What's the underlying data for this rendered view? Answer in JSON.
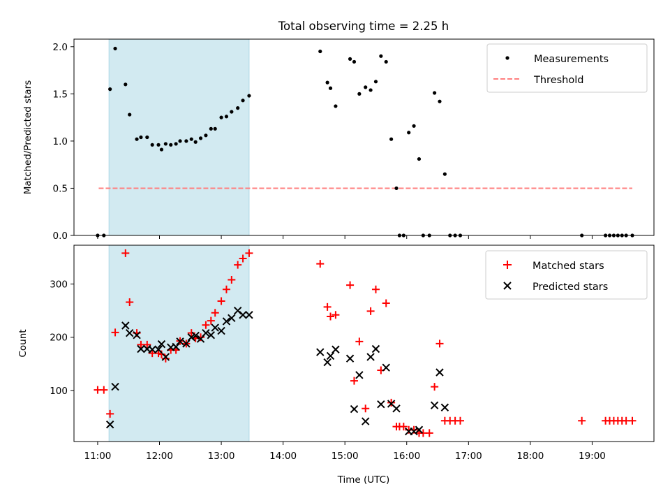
{
  "figure_title": "Total observing time = 2.25 h",
  "colors": {
    "shade": "#add8e6",
    "measurement": "#000000",
    "threshold": "#ff7f7f",
    "matched": "#ff0000",
    "predicted": "#000000"
  },
  "chart_data": [
    {
      "type": "scatter",
      "title": "Total observing time = 2.25 h",
      "xlabel": "",
      "ylabel": "Matched/Predicted stars",
      "xlim": [
        "10:37",
        "20:00"
      ],
      "ylim": [
        0,
        2.08
      ],
      "yticks": [
        "0.0",
        "0.5",
        "1.0",
        "1.5",
        "2.0"
      ],
      "grid": false,
      "legend_position": "upper right",
      "shaded_interval": [
        "11:11",
        "13:27"
      ],
      "threshold": {
        "name": "Threshold",
        "y": 0.5,
        "x_range": [
          "11:01",
          "19:39"
        ],
        "style": "dashed"
      },
      "series": [
        {
          "name": "Measurements",
          "points": [
            [
              "11:00",
              0.0
            ],
            [
              "11:06",
              0.0
            ],
            [
              "11:12",
              1.55
            ],
            [
              "11:17",
              1.98
            ],
            [
              "11:27",
              1.6
            ],
            [
              "11:31",
              1.28
            ],
            [
              "11:38",
              1.02
            ],
            [
              "11:42",
              1.04
            ],
            [
              "11:48",
              1.04
            ],
            [
              "11:53",
              0.96
            ],
            [
              "11:59",
              0.96
            ],
            [
              "12:02",
              0.91
            ],
            [
              "12:06",
              0.97
            ],
            [
              "12:11",
              0.96
            ],
            [
              "12:16",
              0.97
            ],
            [
              "12:20",
              1.0
            ],
            [
              "12:26",
              1.0
            ],
            [
              "12:31",
              1.02
            ],
            [
              "12:35",
              0.99
            ],
            [
              "12:40",
              1.03
            ],
            [
              "12:45",
              1.06
            ],
            [
              "12:50",
              1.13
            ],
            [
              "12:54",
              1.13
            ],
            [
              "13:00",
              1.25
            ],
            [
              "13:05",
              1.26
            ],
            [
              "13:10",
              1.31
            ],
            [
              "13:16",
              1.35
            ],
            [
              "13:21",
              1.43
            ],
            [
              "13:27",
              1.48
            ],
            [
              "14:36",
              1.95
            ],
            [
              "14:43",
              1.62
            ],
            [
              "14:46",
              1.56
            ],
            [
              "14:51",
              1.37
            ],
            [
              "15:05",
              1.87
            ],
            [
              "15:09",
              1.84
            ],
            [
              "15:14",
              1.5
            ],
            [
              "15:20",
              1.57
            ],
            [
              "15:25",
              1.54
            ],
            [
              "15:30",
              1.63
            ],
            [
              "15:35",
              1.9
            ],
            [
              "15:40",
              1.84
            ],
            [
              "15:45",
              1.02
            ],
            [
              "15:50",
              0.5
            ],
            [
              "15:53",
              0.0
            ],
            [
              "15:57",
              0.0
            ],
            [
              "16:02",
              1.09
            ],
            [
              "16:07",
              1.16
            ],
            [
              "16:12",
              0.81
            ],
            [
              "16:16",
              0.0
            ],
            [
              "16:22",
              0.0
            ],
            [
              "16:27",
              1.51
            ],
            [
              "16:32",
              1.42
            ],
            [
              "16:37",
              0.65
            ],
            [
              "16:42",
              0.0
            ],
            [
              "16:47",
              0.0
            ],
            [
              "16:52",
              0.0
            ],
            [
              "18:50",
              0.0
            ],
            [
              "19:13",
              0.0
            ],
            [
              "19:17",
              0.0
            ],
            [
              "19:21",
              0.0
            ],
            [
              "19:25",
              0.0
            ],
            [
              "19:29",
              0.0
            ],
            [
              "19:33",
              0.0
            ],
            [
              "19:39",
              0.0
            ]
          ]
        }
      ]
    },
    {
      "type": "scatter",
      "title": "",
      "xlabel": "Time (UTC)",
      "ylabel": "Count",
      "xlim": [
        "10:37",
        "20:00"
      ],
      "ylim": [
        4,
        373
      ],
      "yticks": [
        "100",
        "200",
        "300"
      ],
      "xticks": [
        "11:00",
        "12:00",
        "13:00",
        "14:00",
        "15:00",
        "16:00",
        "17:00",
        "18:00",
        "19:00"
      ],
      "grid": false,
      "legend_position": "upper right",
      "shaded_interval": [
        "11:11",
        "13:27"
      ],
      "series": [
        {
          "name": "Matched stars",
          "marker": "plus",
          "points": [
            [
              "11:00",
              101
            ],
            [
              "11:06",
              101
            ],
            [
              "11:12",
              56
            ],
            [
              "11:17",
              209
            ],
            [
              "11:27",
              358
            ],
            [
              "11:31",
              266
            ],
            [
              "11:38",
              208
            ],
            [
              "11:42",
              186
            ],
            [
              "11:48",
              186
            ],
            [
              "11:53",
              170
            ],
            [
              "11:59",
              170
            ],
            [
              "12:02",
              168
            ],
            [
              "12:06",
              160
            ],
            [
              "12:11",
              176
            ],
            [
              "12:16",
              176
            ],
            [
              "12:20",
              193
            ],
            [
              "12:26",
              188
            ],
            [
              "12:31",
              208
            ],
            [
              "12:35",
              198
            ],
            [
              "12:40",
              200
            ],
            [
              "12:45",
              223
            ],
            [
              "12:50",
              231
            ],
            [
              "12:54",
              246
            ],
            [
              "13:00",
              268
            ],
            [
              "13:05",
              290
            ],
            [
              "13:10",
              308
            ],
            [
              "13:16",
              336
            ],
            [
              "13:21",
              348
            ],
            [
              "13:27",
              358
            ],
            [
              "14:36",
              338
            ],
            [
              "14:43",
              257
            ],
            [
              "14:46",
              239
            ],
            [
              "14:51",
              242
            ],
            [
              "15:05",
              298
            ],
            [
              "15:09",
              118
            ],
            [
              "15:14",
              192
            ],
            [
              "15:20",
              66
            ],
            [
              "15:25",
              249
            ],
            [
              "15:30",
              290
            ],
            [
              "15:35",
              138
            ],
            [
              "15:40",
              264
            ],
            [
              "15:45",
              77
            ],
            [
              "15:50",
              32
            ],
            [
              "15:53",
              32
            ],
            [
              "15:57",
              32
            ],
            [
              "16:02",
              26
            ],
            [
              "16:07",
              26
            ],
            [
              "16:12",
              20
            ],
            [
              "16:16",
              20
            ],
            [
              "16:22",
              20
            ],
            [
              "16:27",
              107
            ],
            [
              "16:32",
              188
            ],
            [
              "16:37",
              43
            ],
            [
              "16:42",
              43
            ],
            [
              "16:47",
              43
            ],
            [
              "16:52",
              43
            ],
            [
              "18:50",
              43
            ],
            [
              "19:13",
              43
            ],
            [
              "19:17",
              43
            ],
            [
              "19:21",
              43
            ],
            [
              "19:25",
              43
            ],
            [
              "19:29",
              43
            ],
            [
              "19:33",
              43
            ],
            [
              "19:39",
              43
            ]
          ]
        },
        {
          "name": "Predicted stars",
          "marker": "x",
          "points": [
            [
              "11:12",
              36
            ],
            [
              "11:17",
              107
            ],
            [
              "11:27",
              222
            ],
            [
              "11:31",
              208
            ],
            [
              "11:38",
              204
            ],
            [
              "11:42",
              178
            ],
            [
              "11:48",
              178
            ],
            [
              "11:53",
              177
            ],
            [
              "11:59",
              177
            ],
            [
              "12:02",
              187
            ],
            [
              "12:06",
              163
            ],
            [
              "12:11",
              181
            ],
            [
              "12:16",
              182
            ],
            [
              "12:20",
              192
            ],
            [
              "12:26",
              188
            ],
            [
              "12:31",
              200
            ],
            [
              "12:35",
              203
            ],
            [
              "12:40",
              197
            ],
            [
              "12:45",
              208
            ],
            [
              "12:50",
              204
            ],
            [
              "12:54",
              218
            ],
            [
              "13:00",
              212
            ],
            [
              "13:05",
              230
            ],
            [
              "13:10",
              236
            ],
            [
              "13:16",
              250
            ],
            [
              "13:21",
              242
            ],
            [
              "13:27",
              242
            ],
            [
              "14:36",
              172
            ],
            [
              "14:43",
              153
            ],
            [
              "14:46",
              165
            ],
            [
              "14:51",
              177
            ],
            [
              "15:05",
              160
            ],
            [
              "15:09",
              65
            ],
            [
              "15:14",
              129
            ],
            [
              "15:20",
              42
            ],
            [
              "15:25",
              163
            ],
            [
              "15:30",
              178
            ],
            [
              "15:35",
              74
            ],
            [
              "15:40",
              143
            ],
            [
              "15:45",
              75
            ],
            [
              "15:50",
              66
            ],
            [
              "16:02",
              23
            ],
            [
              "16:07",
              23
            ],
            [
              "16:12",
              26
            ],
            [
              "16:27",
              72
            ],
            [
              "16:32",
              134
            ],
            [
              "16:37",
              68
            ]
          ]
        }
      ]
    }
  ]
}
